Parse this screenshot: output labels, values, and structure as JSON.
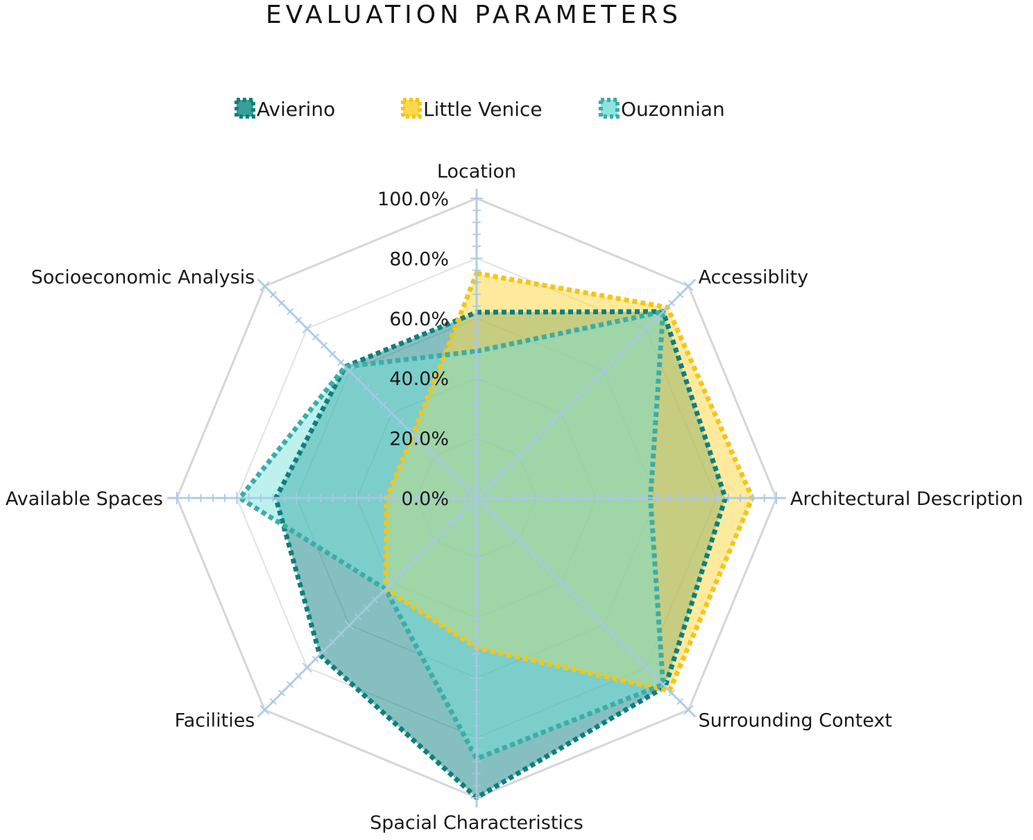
{
  "chart_data": {
    "type": "radar",
    "title": "EVALUATION PARAMETERS",
    "axes": [
      "Location",
      "Accessiblity",
      "Architectural Description",
      "Surrounding Context",
      "Spacial Characteristics",
      "Facilities",
      "Available Spaces",
      "Socioeconomic Analysis"
    ],
    "ticks": [
      "0.0%",
      "20.0%",
      "40.0%",
      "60.0%",
      "80.0%",
      "100.0%"
    ],
    "range": [
      0,
      100
    ],
    "legend_position": "top",
    "grid": true,
    "series": [
      {
        "name": "Avierino",
        "values": [
          62,
          88,
          83,
          89,
          100,
          74,
          67,
          62
        ],
        "color": "#0e7f7f",
        "fill": "#0e7f7f"
      },
      {
        "name": "Little Venice",
        "values": [
          75,
          90,
          92,
          91,
          50,
          43,
          30,
          30
        ],
        "color": "#f5c518",
        "fill": "#fbd94c"
      },
      {
        "name": "Ouzonnian",
        "values": [
          49,
          88,
          58,
          88,
          87,
          43,
          79,
          62
        ],
        "color": "#3aada8",
        "fill": "#6fe0d8"
      }
    ]
  }
}
